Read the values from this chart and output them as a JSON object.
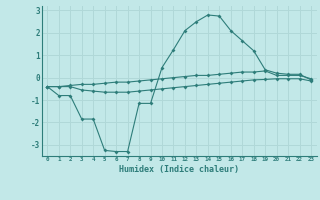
{
  "x": [
    0,
    1,
    2,
    3,
    4,
    5,
    6,
    7,
    8,
    9,
    10,
    11,
    12,
    13,
    14,
    15,
    16,
    17,
    18,
    19,
    20,
    21,
    22,
    23
  ],
  "line1": [
    -0.4,
    -0.4,
    -0.35,
    -0.3,
    -0.3,
    -0.25,
    -0.2,
    -0.2,
    -0.15,
    -0.1,
    -0.05,
    0.0,
    0.05,
    0.1,
    0.1,
    0.15,
    0.2,
    0.25,
    0.25,
    0.3,
    0.1,
    0.1,
    0.1,
    -0.05
  ],
  "line2": [
    -0.4,
    -0.4,
    -0.4,
    -0.55,
    -0.6,
    -0.65,
    -0.65,
    -0.65,
    -0.6,
    -0.55,
    -0.5,
    -0.45,
    -0.4,
    -0.35,
    -0.3,
    -0.25,
    -0.2,
    -0.15,
    -0.1,
    -0.08,
    -0.05,
    -0.05,
    -0.05,
    -0.15
  ],
  "line3": [
    -0.4,
    -0.8,
    -0.8,
    -1.85,
    -1.85,
    -3.25,
    -3.3,
    -3.3,
    -1.15,
    -1.15,
    0.45,
    1.25,
    2.1,
    2.5,
    2.8,
    2.75,
    2.1,
    1.65,
    1.2,
    0.35,
    0.2,
    0.15,
    0.15,
    -0.1
  ],
  "bg_color": "#c2e8e8",
  "line_color": "#2e7d7a",
  "grid_color": "#b0d8d8",
  "xlabel": "Humidex (Indice chaleur)",
  "ylim": [
    -3.5,
    3.2
  ],
  "xlim": [
    -0.5,
    23.5
  ],
  "yticks": [
    -3,
    -2,
    -1,
    0,
    1,
    2,
    3
  ],
  "xticks": [
    0,
    1,
    2,
    3,
    4,
    5,
    6,
    7,
    8,
    9,
    10,
    11,
    12,
    13,
    14,
    15,
    16,
    17,
    18,
    19,
    20,
    21,
    22,
    23
  ]
}
